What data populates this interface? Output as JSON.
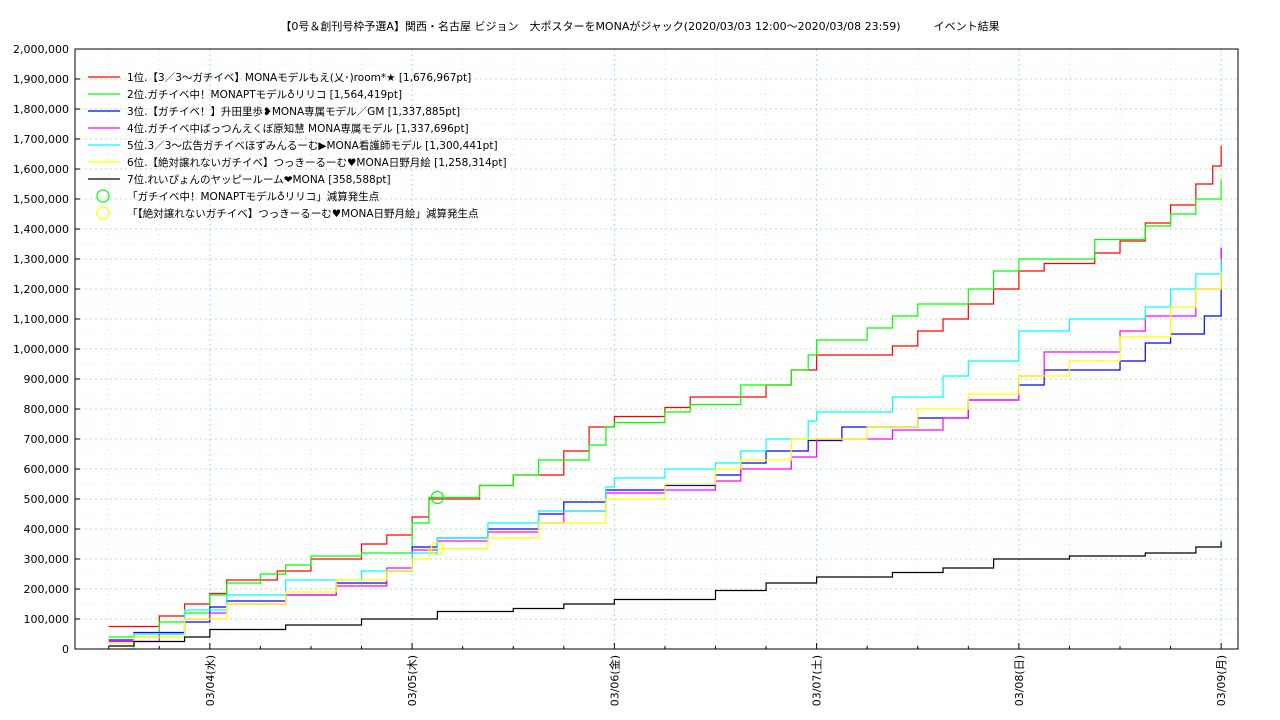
{
  "chart_data": {
    "type": "line",
    "title": "【0号＆創刊号枠予選A】関西・名古屋 ビジョン　大ポスターをMONAがジャック(2020/03/03 12:00～2020/03/08 23:59)　　　イベント結果",
    "xlabel": "",
    "ylabel": "",
    "ylim": [
      0,
      2000000
    ],
    "y_ticks": [
      "0",
      "100,000",
      "200,000",
      "300,000",
      "400,000",
      "500,000",
      "600,000",
      "700,000",
      "800,000",
      "900,000",
      "1,000,000",
      "1,100,000",
      "1,200,000",
      "1,300,000",
      "1,400,000",
      "1,500,000",
      "1,600,000",
      "1,700,000",
      "1,800,000",
      "1,900,000",
      "2,000,000"
    ],
    "x_ticks": [
      "03/04(水)",
      "03/05(木)",
      "03/06(金)",
      "03/07(土)",
      "03/08(日)",
      "03/09(月)"
    ],
    "xlim": [
      "2020-03-03 08:00",
      "2020-03-09 02:00"
    ],
    "grid": true,
    "legend_position": "top-left",
    "series": [
      {
        "name": "1位.【3／3～ガチイベ】MONAモデルもえ(乂･)room*★ [1,676,967pt]",
        "color": "#ff0000",
        "points": [
          [
            "2020-03-03 12:00",
            75000
          ],
          [
            "2020-03-03 18:00",
            110000
          ],
          [
            "2020-03-03 21:00",
            150000
          ],
          [
            "2020-03-04 00:00",
            185000
          ],
          [
            "2020-03-04 02:00",
            230000
          ],
          [
            "2020-03-04 08:00",
            260000
          ],
          [
            "2020-03-04 12:00",
            300000
          ],
          [
            "2020-03-04 18:00",
            350000
          ],
          [
            "2020-03-04 21:00",
            380000
          ],
          [
            "2020-03-05 00:00",
            440000
          ],
          [
            "2020-03-05 02:00",
            500000
          ],
          [
            "2020-03-05 08:00",
            545000
          ],
          [
            "2020-03-05 12:00",
            580000
          ],
          [
            "2020-03-05 18:00",
            660000
          ],
          [
            "2020-03-05 21:00",
            740000
          ],
          [
            "2020-03-06 00:00",
            775000
          ],
          [
            "2020-03-06 06:00",
            805000
          ],
          [
            "2020-03-06 09:00",
            840000
          ],
          [
            "2020-03-06 18:00",
            880000
          ],
          [
            "2020-03-06 21:00",
            930000
          ],
          [
            "2020-03-07 00:00",
            980000
          ],
          [
            "2020-03-07 09:00",
            1010000
          ],
          [
            "2020-03-07 12:00",
            1060000
          ],
          [
            "2020-03-07 15:00",
            1100000
          ],
          [
            "2020-03-07 18:00",
            1150000
          ],
          [
            "2020-03-07 21:00",
            1200000
          ],
          [
            "2020-03-08 00:00",
            1260000
          ],
          [
            "2020-03-08 03:00",
            1285000
          ],
          [
            "2020-03-08 09:00",
            1320000
          ],
          [
            "2020-03-08 12:00",
            1360000
          ],
          [
            "2020-03-08 15:00",
            1420000
          ],
          [
            "2020-03-08 18:00",
            1480000
          ],
          [
            "2020-03-08 21:00",
            1550000
          ],
          [
            "2020-03-08 23:00",
            1610000
          ],
          [
            "2020-03-09 00:00",
            1676967
          ]
        ]
      },
      {
        "name": "2位.ガチイベ中！MONAPTモデル♁リリコ [1,564,419pt]",
        "color": "#00ff00",
        "points": [
          [
            "2020-03-03 12:00",
            40000
          ],
          [
            "2020-03-03 18:00",
            90000
          ],
          [
            "2020-03-03 21:00",
            120000
          ],
          [
            "2020-03-04 00:00",
            180000
          ],
          [
            "2020-03-04 02:00",
            220000
          ],
          [
            "2020-03-04 06:00",
            250000
          ],
          [
            "2020-03-04 09:00",
            280000
          ],
          [
            "2020-03-04 12:00",
            310000
          ],
          [
            "2020-03-04 18:00",
            320000
          ],
          [
            "2020-03-05 00:00",
            420000
          ],
          [
            "2020-03-05 02:00",
            505000
          ],
          [
            "2020-03-05 08:00",
            545000
          ],
          [
            "2020-03-05 12:00",
            580000
          ],
          [
            "2020-03-05 15:00",
            630000
          ],
          [
            "2020-03-05 21:00",
            680000
          ],
          [
            "2020-03-05 23:00",
            740000
          ],
          [
            "2020-03-06 00:00",
            755000
          ],
          [
            "2020-03-06 06:00",
            790000
          ],
          [
            "2020-03-06 09:00",
            815000
          ],
          [
            "2020-03-06 15:00",
            880000
          ],
          [
            "2020-03-06 21:00",
            930000
          ],
          [
            "2020-03-06 23:00",
            980000
          ],
          [
            "2020-03-07 00:00",
            1030000
          ],
          [
            "2020-03-07 06:00",
            1070000
          ],
          [
            "2020-03-07 09:00",
            1110000
          ],
          [
            "2020-03-07 12:00",
            1150000
          ],
          [
            "2020-03-07 18:00",
            1200000
          ],
          [
            "2020-03-07 21:00",
            1260000
          ],
          [
            "2020-03-08 00:00",
            1300000
          ],
          [
            "2020-03-08 09:00",
            1365000
          ],
          [
            "2020-03-08 15:00",
            1410000
          ],
          [
            "2020-03-08 18:00",
            1450000
          ],
          [
            "2020-03-08 21:00",
            1500000
          ],
          [
            "2020-03-09 00:00",
            1564419
          ]
        ]
      },
      {
        "name": "3位.【ガチイベ！】升田里歩❥MONA専属モデル／GM [1,337,885pt]",
        "color": "#0000ff",
        "points": [
          [
            "2020-03-03 12:00",
            30000
          ],
          [
            "2020-03-03 15:00",
            55000
          ],
          [
            "2020-03-03 21:00",
            90000
          ],
          [
            "2020-03-04 00:00",
            140000
          ],
          [
            "2020-03-04 02:00",
            160000
          ],
          [
            "2020-03-04 09:00",
            180000
          ],
          [
            "2020-03-04 15:00",
            220000
          ],
          [
            "2020-03-04 21:00",
            260000
          ],
          [
            "2020-03-05 00:00",
            340000
          ],
          [
            "2020-03-05 03:00",
            370000
          ],
          [
            "2020-03-05 09:00",
            400000
          ],
          [
            "2020-03-05 15:00",
            450000
          ],
          [
            "2020-03-05 18:00",
            490000
          ],
          [
            "2020-03-05 23:00",
            530000
          ],
          [
            "2020-03-06 06:00",
            545000
          ],
          [
            "2020-03-06 12:00",
            580000
          ],
          [
            "2020-03-06 15:00",
            620000
          ],
          [
            "2020-03-06 18:00",
            660000
          ],
          [
            "2020-03-06 23:00",
            695000
          ],
          [
            "2020-03-07 03:00",
            740000
          ],
          [
            "2020-03-07 12:00",
            770000
          ],
          [
            "2020-03-07 18:00",
            830000
          ],
          [
            "2020-03-08 00:00",
            880000
          ],
          [
            "2020-03-08 03:00",
            930000
          ],
          [
            "2020-03-08 12:00",
            960000
          ],
          [
            "2020-03-08 15:00",
            1020000
          ],
          [
            "2020-03-08 18:00",
            1050000
          ],
          [
            "2020-03-08 22:00",
            1110000
          ],
          [
            "2020-03-09 00:00",
            1337885
          ]
        ]
      },
      {
        "name": "4位.ガチイベ中ばっつんえくぼ原知慧 MONA専属モデル [1,337,696pt]",
        "color": "#ff00ff",
        "points": [
          [
            "2020-03-03 12:00",
            25000
          ],
          [
            "2020-03-03 18:00",
            50000
          ],
          [
            "2020-03-03 21:00",
            100000
          ],
          [
            "2020-03-04 00:00",
            120000
          ],
          [
            "2020-03-04 02:00",
            150000
          ],
          [
            "2020-03-04 09:00",
            180000
          ],
          [
            "2020-03-04 15:00",
            210000
          ],
          [
            "2020-03-04 21:00",
            270000
          ],
          [
            "2020-03-05 00:00",
            330000
          ],
          [
            "2020-03-05 03:00",
            360000
          ],
          [
            "2020-03-05 09:00",
            390000
          ],
          [
            "2020-03-05 15:00",
            420000
          ],
          [
            "2020-03-05 18:00",
            460000
          ],
          [
            "2020-03-05 23:00",
            520000
          ],
          [
            "2020-03-06 06:00",
            530000
          ],
          [
            "2020-03-06 12:00",
            560000
          ],
          [
            "2020-03-06 15:00",
            600000
          ],
          [
            "2020-03-06 21:00",
            640000
          ],
          [
            "2020-03-07 00:00",
            700000
          ],
          [
            "2020-03-07 09:00",
            730000
          ],
          [
            "2020-03-07 15:00",
            770000
          ],
          [
            "2020-03-07 18:00",
            830000
          ],
          [
            "2020-03-08 00:00",
            910000
          ],
          [
            "2020-03-08 03:00",
            990000
          ],
          [
            "2020-03-08 12:00",
            1060000
          ],
          [
            "2020-03-08 15:00",
            1110000
          ],
          [
            "2020-03-08 21:00",
            1200000
          ],
          [
            "2020-03-09 00:00",
            1337696
          ]
        ]
      },
      {
        "name": "5位.3／3～広告ガチイベほずみんるーむ▶MONA看護師モデル [1,300,441pt]",
        "color": "#00ffff",
        "points": [
          [
            "2020-03-03 14:00",
            0
          ],
          [
            "2020-03-03 15:00",
            50000
          ],
          [
            "2020-03-03 21:00",
            130000
          ],
          [
            "2020-03-04 02:00",
            180000
          ],
          [
            "2020-03-04 09:00",
            230000
          ],
          [
            "2020-03-04 18:00",
            260000
          ],
          [
            "2020-03-05 00:00",
            320000
          ],
          [
            "2020-03-05 03:00",
            370000
          ],
          [
            "2020-03-05 09:00",
            420000
          ],
          [
            "2020-03-05 15:00",
            460000
          ],
          [
            "2020-03-05 23:00",
            540000
          ],
          [
            "2020-03-06 00:00",
            570000
          ],
          [
            "2020-03-06 06:00",
            600000
          ],
          [
            "2020-03-06 12:00",
            620000
          ],
          [
            "2020-03-06 15:00",
            660000
          ],
          [
            "2020-03-06 18:00",
            700000
          ],
          [
            "2020-03-06 23:00",
            760000
          ],
          [
            "2020-03-07 00:00",
            790000
          ],
          [
            "2020-03-07 09:00",
            840000
          ],
          [
            "2020-03-07 15:00",
            910000
          ],
          [
            "2020-03-07 18:00",
            960000
          ],
          [
            "2020-03-08 00:00",
            1060000
          ],
          [
            "2020-03-08 06:00",
            1100000
          ],
          [
            "2020-03-08 15:00",
            1140000
          ],
          [
            "2020-03-08 18:00",
            1200000
          ],
          [
            "2020-03-08 21:00",
            1250000
          ],
          [
            "2020-03-09 00:00",
            1300441
          ]
        ]
      },
      {
        "name": "6位.【絶対譲れないガチイベ】つっきーるーむ♥MONA日野月絵 [1,258,314pt]",
        "color": "#ffff00",
        "points": [
          [
            "2020-03-03 12:00",
            20000
          ],
          [
            "2020-03-03 15:00",
            40000
          ],
          [
            "2020-03-03 21:00",
            100000
          ],
          [
            "2020-03-04 02:00",
            150000
          ],
          [
            "2020-03-04 09:00",
            190000
          ],
          [
            "2020-03-04 15:00",
            230000
          ],
          [
            "2020-03-04 21:00",
            260000
          ],
          [
            "2020-03-05 00:00",
            300000
          ],
          [
            "2020-03-05 02:00",
            335000
          ],
          [
            "2020-03-05 09:00",
            370000
          ],
          [
            "2020-03-05 15:00",
            420000
          ],
          [
            "2020-03-05 23:00",
            500000
          ],
          [
            "2020-03-06 06:00",
            550000
          ],
          [
            "2020-03-06 12:00",
            600000
          ],
          [
            "2020-03-06 15:00",
            630000
          ],
          [
            "2020-03-06 21:00",
            700000
          ],
          [
            "2020-03-07 06:00",
            740000
          ],
          [
            "2020-03-07 12:00",
            800000
          ],
          [
            "2020-03-07 18:00",
            850000
          ],
          [
            "2020-03-08 00:00",
            910000
          ],
          [
            "2020-03-08 06:00",
            960000
          ],
          [
            "2020-03-08 12:00",
            1040000
          ],
          [
            "2020-03-08 18:00",
            1140000
          ],
          [
            "2020-03-08 21:00",
            1200000
          ],
          [
            "2020-03-09 00:00",
            1258314
          ]
        ]
      },
      {
        "name": "7位.れいぴょんのヤッピールーム❤MONA [358,588pt]",
        "color": "#000000",
        "points": [
          [
            "2020-03-03 12:00",
            10000
          ],
          [
            "2020-03-03 15:00",
            25000
          ],
          [
            "2020-03-03 21:00",
            40000
          ],
          [
            "2020-03-04 00:00",
            65000
          ],
          [
            "2020-03-04 09:00",
            80000
          ],
          [
            "2020-03-04 18:00",
            100000
          ],
          [
            "2020-03-05 03:00",
            125000
          ],
          [
            "2020-03-05 12:00",
            135000
          ],
          [
            "2020-03-05 18:00",
            150000
          ],
          [
            "2020-03-06 00:00",
            165000
          ],
          [
            "2020-03-06 12:00",
            195000
          ],
          [
            "2020-03-06 18:00",
            220000
          ],
          [
            "2020-03-07 00:00",
            240000
          ],
          [
            "2020-03-07 09:00",
            255000
          ],
          [
            "2020-03-07 15:00",
            270000
          ],
          [
            "2020-03-07 21:00",
            300000
          ],
          [
            "2020-03-08 06:00",
            310000
          ],
          [
            "2020-03-08 15:00",
            320000
          ],
          [
            "2020-03-08 21:00",
            340000
          ],
          [
            "2020-03-09 00:00",
            358588
          ]
        ]
      }
    ],
    "markers": [
      {
        "label": "「ガチイベ中！MONAPTモデル♁リリコ」減算発生点",
        "color": "#00ff00",
        "x": "2020-03-05 03:00",
        "y": 505000
      },
      {
        "label": "「【絶対譲れないガチイベ】つっきーるーむ♥MONA日野月絵」減算発生点",
        "color": "#ffff00",
        "x": "2020-03-05 03:00",
        "y": 335000
      }
    ]
  }
}
